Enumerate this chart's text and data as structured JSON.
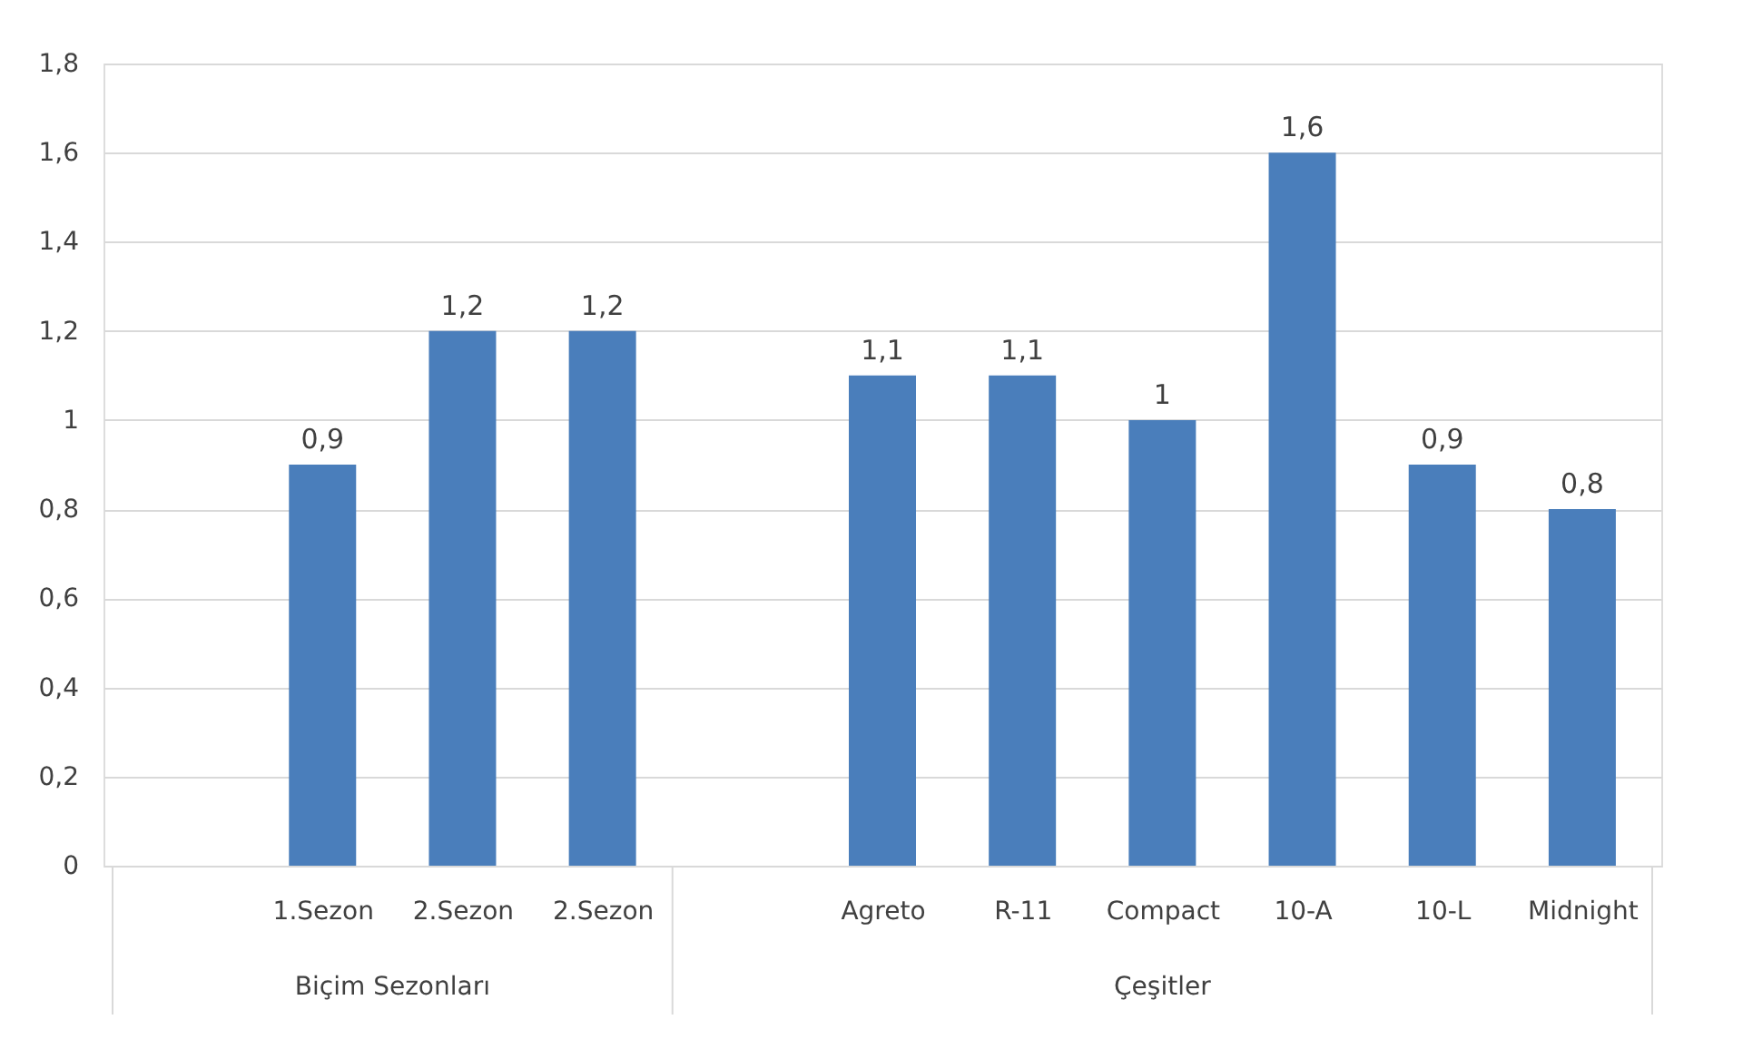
{
  "chart_data": {
    "type": "bar",
    "categories": [
      null,
      "1.Sezon",
      "2.Sezon",
      "2.Sezon",
      null,
      "Agreto",
      "R-11",
      "Compact",
      "10-A",
      "10-L",
      "Midnight"
    ],
    "values": [
      null,
      0.9,
      1.2,
      1.2,
      null,
      1.1,
      1.1,
      1.0,
      1.6,
      0.9,
      0.8
    ],
    "value_labels": [
      null,
      "0,9",
      "1,2",
      "1,2",
      null,
      "1,1",
      "1,1",
      "1",
      "1,6",
      "0,9",
      "0,8"
    ],
    "color": "#4a7ebb",
    "ylim": [
      0,
      1.8
    ],
    "yticks": [
      0,
      {
        "value": 0.2,
        "label": "0,2"
      },
      {
        "value": 0.4,
        "label": "0,4"
      },
      {
        "value": 0.6,
        "label": "0,6"
      },
      {
        "value": 0.8,
        "label": "0,8"
      },
      1,
      {
        "value": 1.2,
        "label": "1,2"
      },
      {
        "value": 1.4,
        "label": "1,4"
      },
      {
        "value": 1.6,
        "label": "1,6"
      },
      {
        "value": 1.8,
        "label": "1,8"
      }
    ],
    "grid": "y",
    "annotations": [
      "Biçim Sezonları",
      "Çeşitler"
    ]
  }
}
